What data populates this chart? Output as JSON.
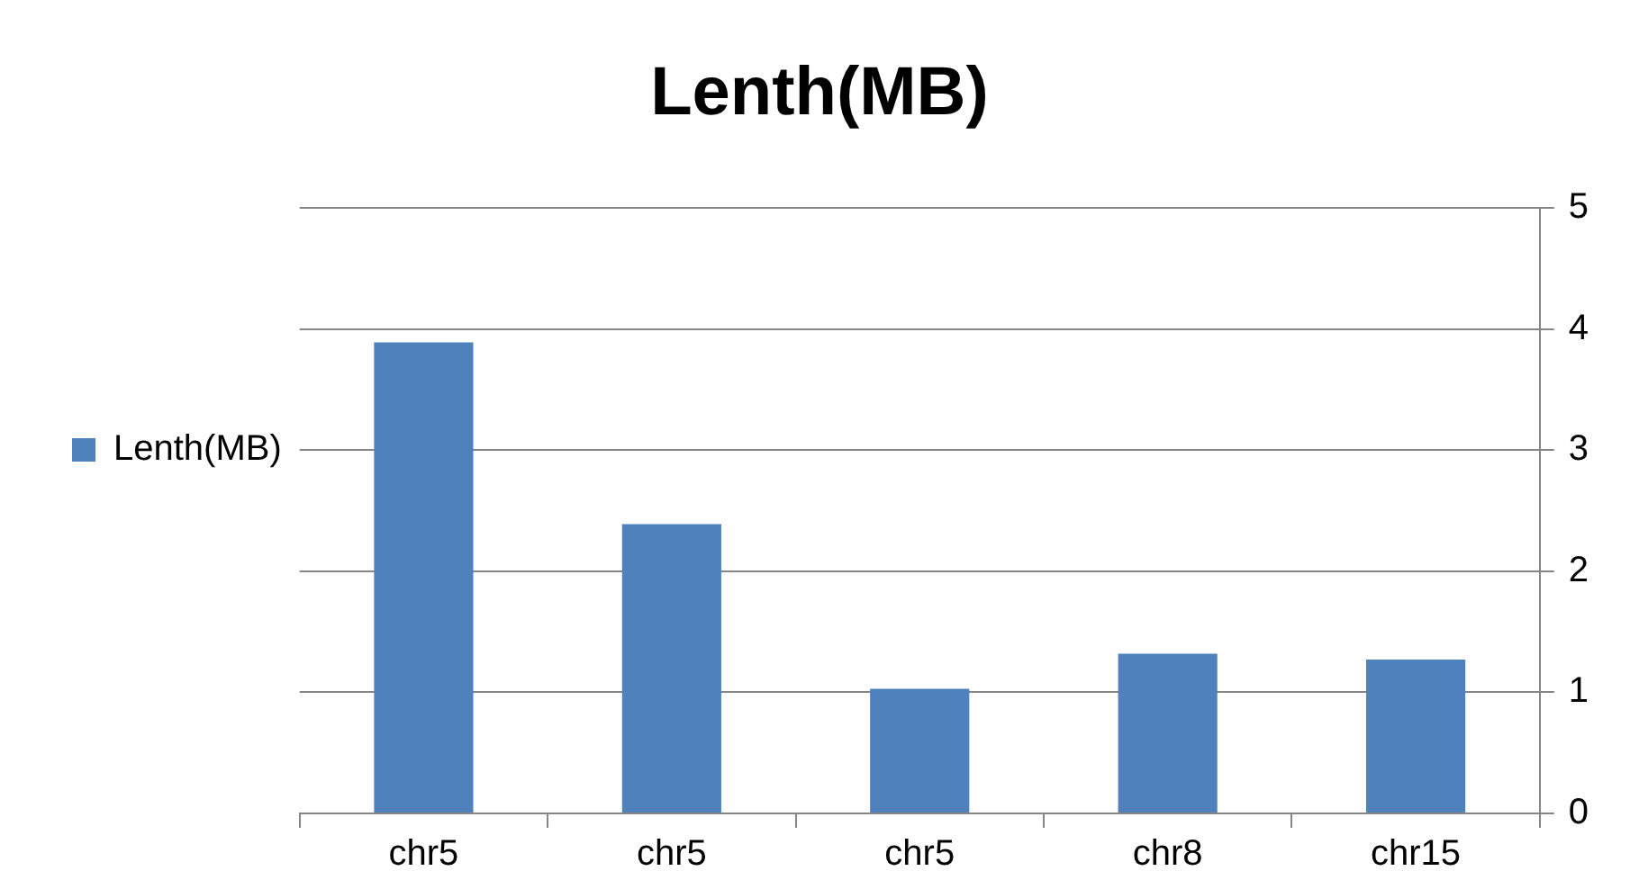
{
  "chart_data": {
    "type": "bar",
    "title": "Lenth(MB)",
    "categories": [
      "chr5",
      "chr5",
      "chr5",
      "chr8",
      "chr15"
    ],
    "series": [
      {
        "name": "Lenth(MB)",
        "color": "#4f81bd",
        "values": [
          3.89,
          2.39,
          1.03,
          1.32,
          1.27
        ]
      }
    ],
    "ylim": [
      0,
      5
    ],
    "yticks": [
      0,
      1,
      2,
      3,
      4,
      5
    ],
    "grid": "y",
    "legend": "left"
  }
}
